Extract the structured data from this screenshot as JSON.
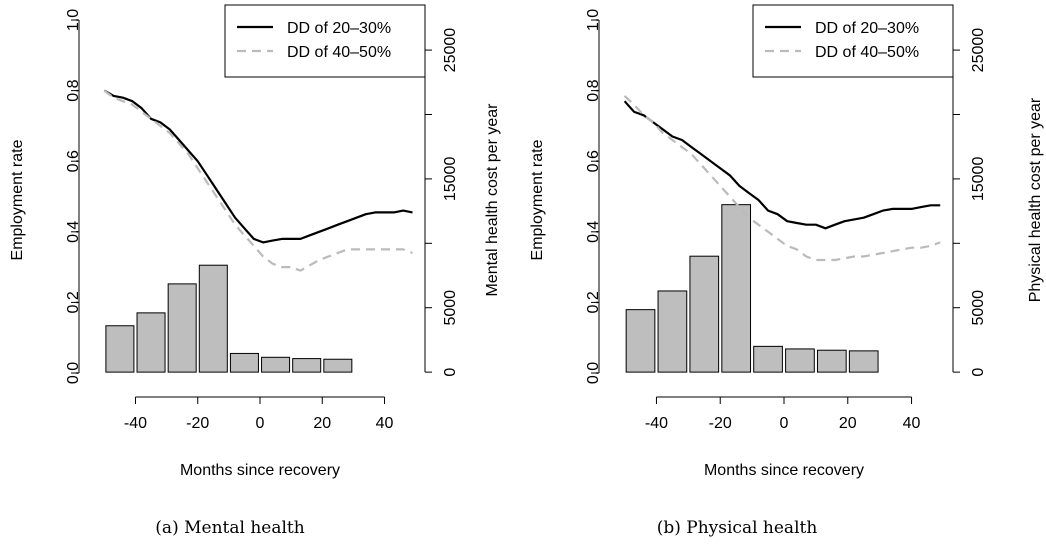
{
  "chart_data": [
    {
      "type": "line",
      "caption": "(a) Mental health",
      "xlabel": "Months since recovery",
      "ylabel": "Employment rate",
      "ylabel_right": "Mental health cost per year",
      "xlim": [
        -53,
        53
      ],
      "xticks": [
        -40,
        -20,
        0,
        20,
        40
      ],
      "ylim": [
        -0.02,
        1.0
      ],
      "yticks": [
        0.0,
        0.2,
        0.4,
        0.6,
        0.8,
        1.0
      ],
      "yticks_right": [
        0,
        5000,
        15000,
        25000
      ],
      "y2lim": [
        -1000,
        28500
      ],
      "legend": {
        "position": "top-right",
        "entries": [
          "DD of 20–30%",
          "DD of 40–50%"
        ]
      },
      "bars": {
        "x": [
          -45,
          -35,
          -25,
          -15,
          -5,
          5,
          15,
          25,
          35,
          45
        ],
        "width": 9,
        "values": [
          3600,
          4600,
          6850,
          8300,
          1450,
          1150,
          1050,
          1000,
          0,
          0
        ],
        "x_drawn": [
          -45,
          -35,
          -25,
          -15,
          -5,
          5,
          15,
          25,
          35,
          45
        ]
      },
      "series": [
        {
          "name": "DD of 20–30%",
          "color": "#000000",
          "dash": "solid",
          "x": [
            -50,
            -47,
            -44,
            -41,
            -38,
            -35,
            -32,
            -29,
            -26,
            -23,
            -20,
            -17,
            -14,
            -11,
            -8,
            -5,
            -2,
            1,
            4,
            7,
            10,
            13,
            16,
            19,
            22,
            25,
            28,
            31,
            34,
            37,
            40,
            43,
            46,
            49
          ],
          "y": [
            0.8,
            0.785,
            0.78,
            0.77,
            0.75,
            0.72,
            0.71,
            0.69,
            0.66,
            0.63,
            0.6,
            0.56,
            0.52,
            0.48,
            0.44,
            0.41,
            0.38,
            0.37,
            0.375,
            0.38,
            0.38,
            0.38,
            0.39,
            0.4,
            0.41,
            0.42,
            0.43,
            0.44,
            0.45,
            0.455,
            0.455,
            0.455,
            0.46,
            0.455
          ]
        },
        {
          "name": "DD of 40–50%",
          "color": "#bbbbbb",
          "dash": "dashed",
          "x": [
            -50,
            -47,
            -44,
            -41,
            -38,
            -35,
            -32,
            -29,
            -26,
            -23,
            -20,
            -17,
            -14,
            -11,
            -8,
            -5,
            -2,
            1,
            4,
            7,
            10,
            13,
            16,
            19,
            22,
            25,
            28,
            31,
            34,
            37,
            40,
            43,
            46,
            49
          ],
          "y": [
            0.8,
            0.78,
            0.77,
            0.76,
            0.74,
            0.72,
            0.7,
            0.68,
            0.65,
            0.62,
            0.58,
            0.54,
            0.5,
            0.46,
            0.42,
            0.39,
            0.36,
            0.33,
            0.31,
            0.3,
            0.3,
            0.29,
            0.305,
            0.32,
            0.33,
            0.34,
            0.35,
            0.35,
            0.35,
            0.35,
            0.35,
            0.35,
            0.35,
            0.34
          ]
        }
      ]
    },
    {
      "type": "line",
      "caption": "(b) Physical health",
      "xlabel": "Months since recovery",
      "ylabel": "Employment rate",
      "ylabel_right": "Physical health cost per year",
      "xlim": [
        -53,
        53
      ],
      "xticks": [
        -40,
        -20,
        0,
        20,
        40
      ],
      "ylim": [
        -0.02,
        1.0
      ],
      "yticks": [
        0.0,
        0.2,
        0.4,
        0.6,
        0.8,
        1.0
      ],
      "yticks_right": [
        0,
        5000,
        15000,
        25000
      ],
      "y2lim": [
        -1000,
        28500
      ],
      "legend": {
        "position": "top-right",
        "entries": [
          "DD of 20–30%",
          "DD of 40–50%"
        ]
      },
      "bars": {
        "x": [
          -45,
          -35,
          -25,
          -15,
          -5,
          5,
          15,
          25,
          35,
          45
        ],
        "width": 9,
        "values": [
          4850,
          6300,
          9000,
          13000,
          2000,
          1800,
          1700,
          1650,
          0,
          0
        ],
        "x_drawn": [
          -45,
          -35,
          -25,
          -15,
          -5,
          5,
          15,
          25,
          35,
          45
        ]
      },
      "series": [
        {
          "name": "DD of 20–30%",
          "color": "#000000",
          "dash": "solid",
          "x": [
            -50,
            -47,
            -44,
            -41,
            -38,
            -35,
            -32,
            -29,
            -26,
            -23,
            -20,
            -17,
            -14,
            -11,
            -8,
            -5,
            -2,
            1,
            4,
            7,
            10,
            13,
            16,
            19,
            22,
            25,
            28,
            31,
            34,
            37,
            40,
            43,
            46,
            49
          ],
          "y": [
            0.77,
            0.74,
            0.73,
            0.71,
            0.69,
            0.67,
            0.66,
            0.64,
            0.62,
            0.6,
            0.58,
            0.56,
            0.53,
            0.51,
            0.49,
            0.46,
            0.45,
            0.43,
            0.425,
            0.42,
            0.42,
            0.41,
            0.42,
            0.43,
            0.435,
            0.44,
            0.45,
            0.46,
            0.465,
            0.465,
            0.465,
            0.47,
            0.475,
            0.475
          ]
        },
        {
          "name": "DD of 40–50%",
          "color": "#bbbbbb",
          "dash": "dashed",
          "x": [
            -50,
            -47,
            -44,
            -41,
            -38,
            -35,
            -32,
            -29,
            -26,
            -23,
            -20,
            -17,
            -14,
            -11,
            -8,
            -5,
            -2,
            1,
            4,
            7,
            10,
            13,
            16,
            19,
            22,
            25,
            28,
            31,
            34,
            37,
            40,
            43,
            46,
            49
          ],
          "y": [
            0.785,
            0.76,
            0.73,
            0.71,
            0.68,
            0.66,
            0.64,
            0.62,
            0.59,
            0.56,
            0.53,
            0.5,
            0.47,
            0.44,
            0.42,
            0.4,
            0.38,
            0.36,
            0.35,
            0.33,
            0.32,
            0.32,
            0.32,
            0.325,
            0.33,
            0.33,
            0.335,
            0.34,
            0.345,
            0.35,
            0.355,
            0.355,
            0.36,
            0.37
          ]
        }
      ]
    }
  ]
}
